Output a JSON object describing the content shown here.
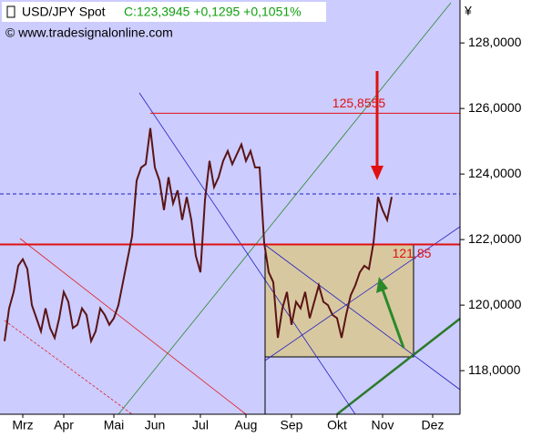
{
  "chart_data": {
    "type": "line",
    "title": "USD/JPY Spot",
    "subtitle": "C:123,3945 +0,1295 +0,1051%",
    "source": "© www.tradesignalonline.com",
    "y_unit": "¥",
    "x": [
      1,
      2,
      3,
      4,
      5,
      6,
      7,
      8,
      9,
      10,
      11,
      12,
      13,
      14,
      15,
      16,
      17,
      18,
      19,
      20,
      21,
      22,
      23,
      24,
      25,
      26,
      27,
      28,
      29,
      30,
      31,
      32,
      33,
      34,
      35,
      36,
      37,
      38,
      39,
      40,
      41,
      42,
      43,
      44,
      45,
      46,
      47,
      48,
      49,
      50,
      51,
      52,
      53,
      54,
      55,
      56,
      57,
      58,
      59,
      60,
      61,
      62,
      63,
      64,
      65,
      66,
      67,
      68,
      69,
      70,
      71,
      72,
      73,
      74,
      75,
      76,
      77,
      78,
      79,
      80,
      81,
      82,
      83,
      84,
      85,
      86
    ],
    "values": [
      118.9,
      119.9,
      120.4,
      121.2,
      121.4,
      121.1,
      120.0,
      119.6,
      119.2,
      119.9,
      119.3,
      119.0,
      119.6,
      120.4,
      120.1,
      119.3,
      119.4,
      119.9,
      119.7,
      118.9,
      119.2,
      119.9,
      119.7,
      119.4,
      119.6,
      120.0,
      120.7,
      121.4,
      122.1,
      123.8,
      124.2,
      124.3,
      125.4,
      124.2,
      123.8,
      122.9,
      123.9,
      123.1,
      123.5,
      122.6,
      123.3,
      122.6,
      121.5,
      121.0,
      123.2,
      124.4,
      123.6,
      123.9,
      124.4,
      124.7,
      124.3,
      124.6,
      124.9,
      124.4,
      124.7,
      124.2,
      124.2,
      121.9,
      121.0,
      120.7,
      119.0,
      119.9,
      120.4,
      119.4,
      120.1,
      119.9,
      120.4,
      119.6,
      120.1,
      120.6,
      120.1,
      120.0,
      119.7,
      119.6,
      119.0,
      119.7,
      120.3,
      120.6,
      121.0,
      121.2,
      121.1,
      121.9,
      123.3,
      122.9,
      122.6,
      123.3
    ],
    "color": "#5a1414",
    "xlim": [
      0,
      101
    ],
    "xticks": [
      {
        "value": 5,
        "label": "Mrz"
      },
      {
        "value": 14,
        "label": "Apr"
      },
      {
        "value": 25,
        "label": "Mai"
      },
      {
        "value": 34,
        "label": "Jun"
      },
      {
        "value": 44,
        "label": "Jul"
      },
      {
        "value": 54,
        "label": "Aug"
      },
      {
        "value": 64,
        "label": "Sep"
      },
      {
        "value": 74,
        "label": "Okt"
      },
      {
        "value": 84,
        "label": "Nov"
      },
      {
        "value": 95,
        "label": "Dez"
      }
    ],
    "ylim": [
      116.67,
      129.31
    ],
    "yticks": [
      {
        "value": 118,
        "label": "118,0000"
      },
      {
        "value": 120,
        "label": "120,0000"
      },
      {
        "value": 122,
        "label": "122,0000"
      },
      {
        "value": 124,
        "label": "124,0000"
      },
      {
        "value": 126,
        "label": "126,0000"
      },
      {
        "value": 128,
        "label": "128,0000"
      }
    ],
    "levels": [
      {
        "value": 125.8555,
        "label": "125,8555"
      },
      {
        "value": 121.85,
        "label": "121,85"
      }
    ],
    "close_level": 123.3945
  }
}
